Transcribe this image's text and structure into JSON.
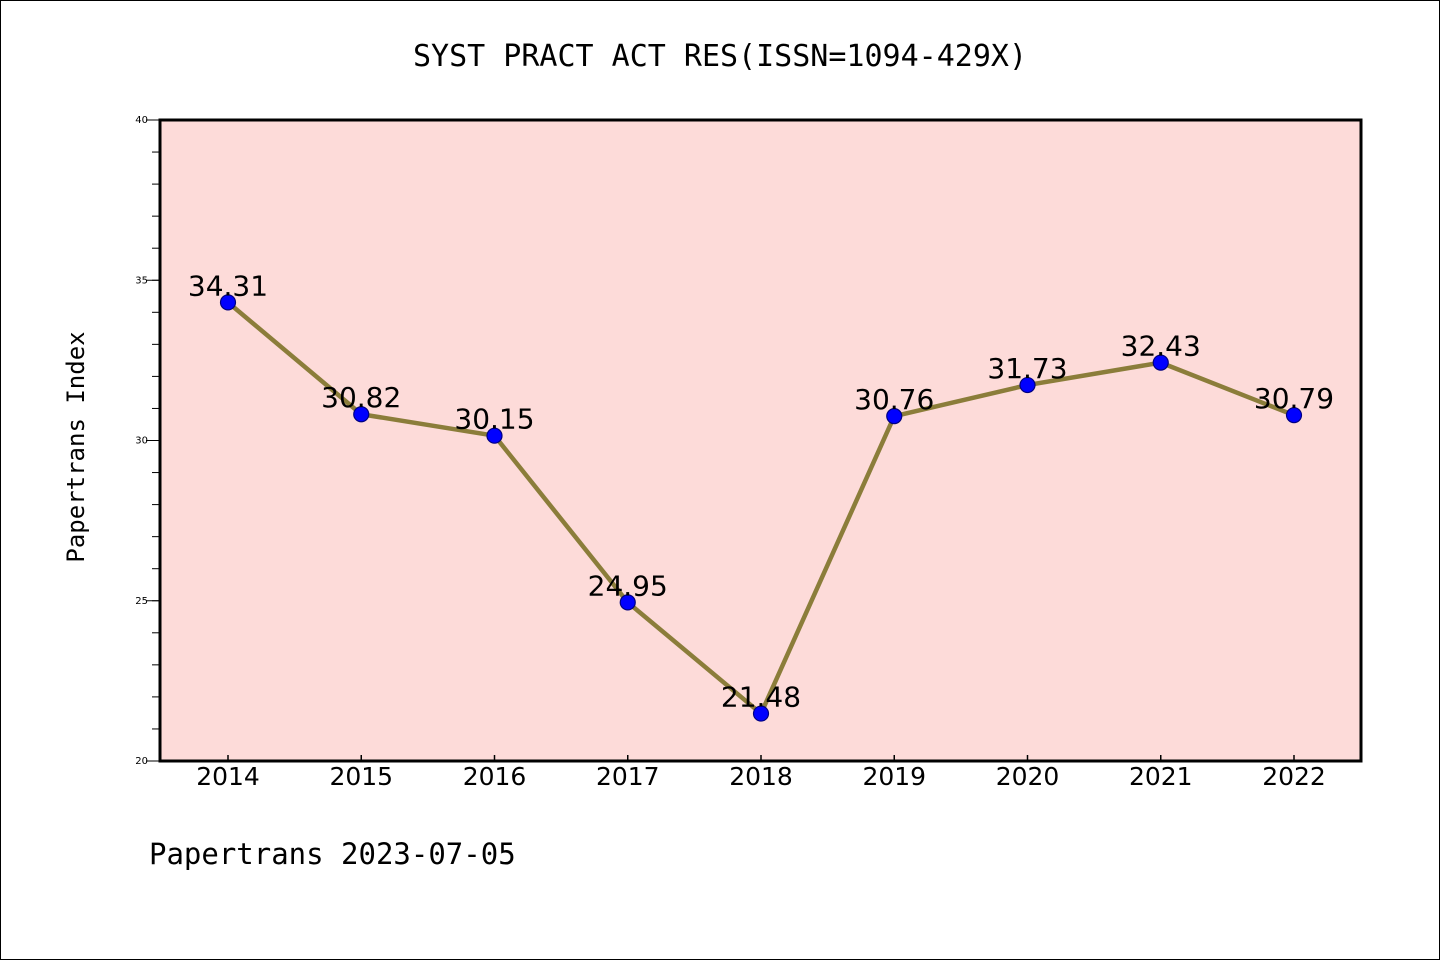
{
  "chart_data": {
    "type": "line",
    "title": "SYST PRACT ACT RES(ISSN=1094-429X)",
    "ylabel": "Papertrans Index",
    "xlabel": "",
    "footer": "Papertrans 2023-07-05",
    "categories": [
      "2014",
      "2015",
      "2016",
      "2017",
      "2018",
      "2019",
      "2020",
      "2021",
      "2022"
    ],
    "values": [
      34.31,
      30.82,
      30.15,
      24.95,
      21.48,
      30.76,
      31.73,
      32.43,
      30.79
    ],
    "data_labels": [
      "34.31",
      "30.82",
      "30.15",
      "24.95",
      "21.48",
      "30.76",
      "31.73",
      "32.43",
      "30.79"
    ],
    "ylim": [
      20,
      40
    ],
    "yticks": [
      20,
      25,
      30,
      35,
      40
    ],
    "ytick_labels": [
      "20",
      "25",
      "30",
      "35",
      "40"
    ],
    "grid": false,
    "legend": "none",
    "colors": {
      "plot_background": "#FDDBD9",
      "line": "#8B7D3A",
      "marker": "#0000FF",
      "marker_edge": "#000080",
      "axes": "#000000"
    }
  }
}
